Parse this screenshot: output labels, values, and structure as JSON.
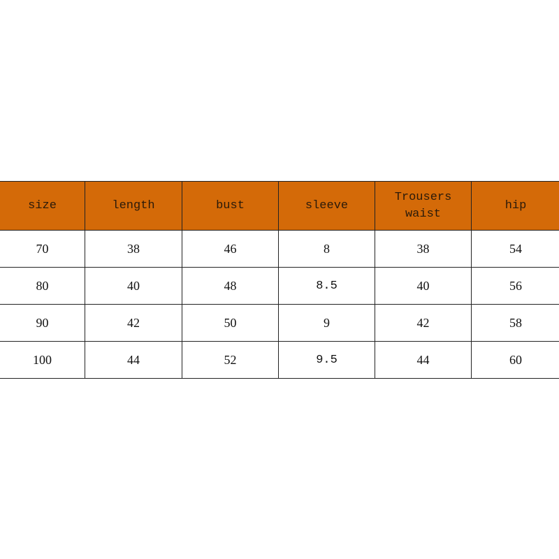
{
  "table": {
    "header_color": "#D46A08",
    "headers": [
      "size",
      "length",
      "bust",
      "sleeve",
      "Trousers\nwaist",
      "hip"
    ],
    "rows": [
      [
        "70",
        "38",
        "46",
        "8",
        "38",
        "54"
      ],
      [
        "80",
        "40",
        "48",
        "8.5",
        "40",
        "56"
      ],
      [
        "90",
        "42",
        "50",
        "9",
        "42",
        "58"
      ],
      [
        "100",
        "44",
        "52",
        "9.5",
        "44",
        "60"
      ]
    ]
  }
}
